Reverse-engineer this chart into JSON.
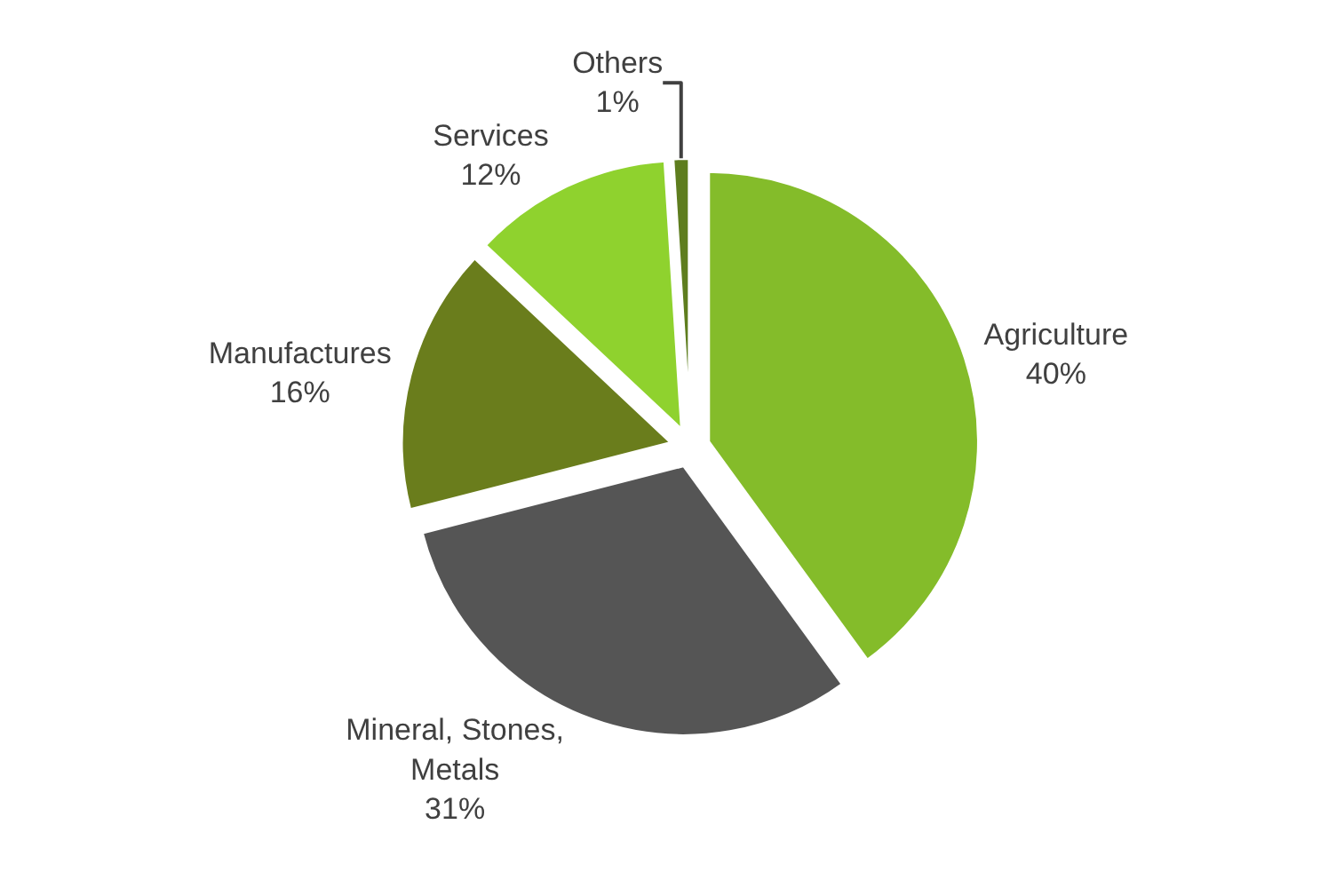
{
  "chart_data": {
    "type": "pie",
    "categories": [
      "Agriculture",
      "Mineral, Stones, Metals",
      "Manufactures",
      "Services",
      "Others"
    ],
    "values": [
      40,
      31,
      16,
      12,
      1
    ],
    "value_labels": [
      "40%",
      "31%",
      "16%",
      "12%",
      "1%"
    ],
    "colors": [
      "#84bc2a",
      "#555555",
      "#6a7d1c",
      "#8fd22e",
      "#5e7d1e"
    ],
    "legend": false
  }
}
